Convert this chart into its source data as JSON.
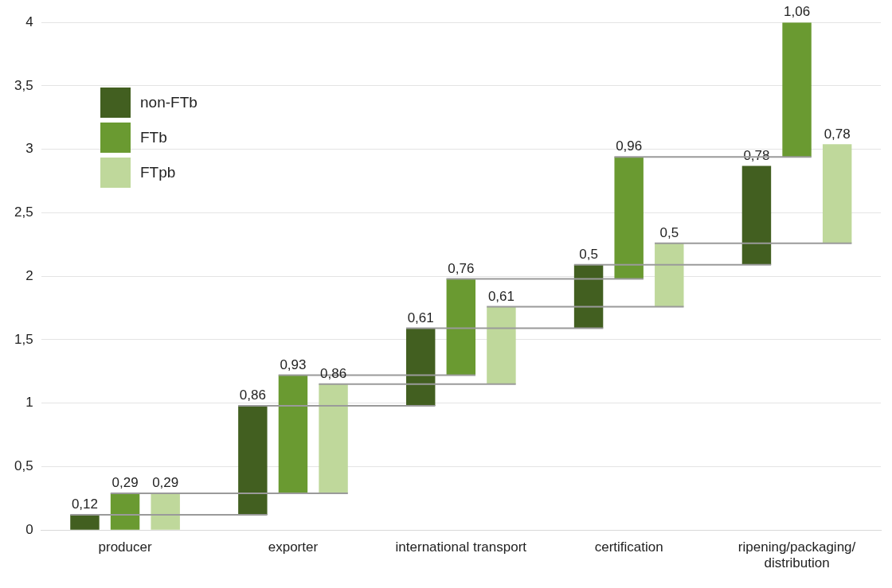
{
  "chart_data": {
    "type": "bar",
    "categories": [
      "producer",
      "exporter",
      "international transport",
      "certification",
      "ripening/packaging/ distribution"
    ],
    "series": [
      {
        "name": "non-FTb",
        "color": "#425f20",
        "values": [
          0.12,
          0.86,
          0.61,
          0.5,
          0.78
        ],
        "base": [
          0,
          0.12,
          0.98,
          1.59,
          2.09
        ],
        "value_labels": [
          "0,12",
          "0,86",
          "0,61",
          "0,5",
          "0,78"
        ]
      },
      {
        "name": "FTb",
        "color": "#6a9a31",
        "values": [
          0.29,
          0.93,
          0.76,
          0.96,
          1.06
        ],
        "base": [
          0,
          0.29,
          1.22,
          1.98,
          2.94
        ],
        "value_labels": [
          "0,29",
          "0,93",
          "0,76",
          "0,96",
          "1,06"
        ]
      },
      {
        "name": "FTpb",
        "color": "#bfd89b",
        "values": [
          0.29,
          0.86,
          0.61,
          0.5,
          0.78
        ],
        "base": [
          0,
          0.29,
          1.15,
          1.76,
          2.26
        ],
        "value_labels": [
          "0,29",
          "0,86",
          "0,61",
          "0,5",
          "0,78"
        ]
      }
    ],
    "ylim": [
      0,
      4
    ],
    "yticks": [
      0,
      {
        "value": 0.5,
        "label": "0,5"
      },
      1,
      {
        "value": 1.5,
        "label": "1,5"
      },
      2,
      {
        "value": 2.5,
        "label": "2,5"
      },
      3,
      {
        "value": 3.5,
        "label": "3,5"
      },
      4
    ],
    "grid": "y",
    "legend": "top left"
  }
}
